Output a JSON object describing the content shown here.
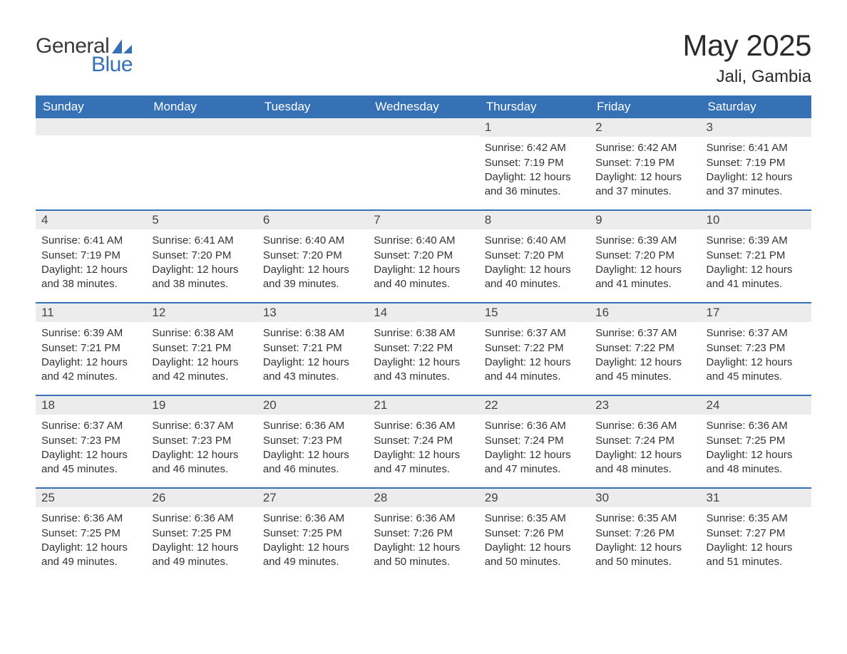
{
  "colors": {
    "header_bg": "#3671b6",
    "header_text": "#ffffff",
    "daynum_bg": "#ececec",
    "daynum_text": "#444444",
    "body_text": "#333333",
    "page_bg": "#ffffff",
    "week_border": "#3671b6",
    "logo_gray": "#3b3b3b",
    "logo_blue": "#3671b6"
  },
  "typography": {
    "title_fontsize": 42,
    "subtitle_fontsize": 24,
    "header_fontsize": 17,
    "daynum_fontsize": 17,
    "body_fontsize": 15,
    "font_family": "Arial"
  },
  "logo": {
    "line1": "General",
    "line2": "Blue"
  },
  "title": "May 2025",
  "subtitle": "Jali, Gambia",
  "day_headers": [
    "Sunday",
    "Monday",
    "Tuesday",
    "Wednesday",
    "Thursday",
    "Friday",
    "Saturday"
  ],
  "weeks": [
    [
      {
        "day": "",
        "sunrise": "",
        "sunset": "",
        "daylight": ""
      },
      {
        "day": "",
        "sunrise": "",
        "sunset": "",
        "daylight": ""
      },
      {
        "day": "",
        "sunrise": "",
        "sunset": "",
        "daylight": ""
      },
      {
        "day": "",
        "sunrise": "",
        "sunset": "",
        "daylight": ""
      },
      {
        "day": "1",
        "sunrise": "6:42 AM",
        "sunset": "7:19 PM",
        "daylight": "12 hours and 36 minutes."
      },
      {
        "day": "2",
        "sunrise": "6:42 AM",
        "sunset": "7:19 PM",
        "daylight": "12 hours and 37 minutes."
      },
      {
        "day": "3",
        "sunrise": "6:41 AM",
        "sunset": "7:19 PM",
        "daylight": "12 hours and 37 minutes."
      }
    ],
    [
      {
        "day": "4",
        "sunrise": "6:41 AM",
        "sunset": "7:19 PM",
        "daylight": "12 hours and 38 minutes."
      },
      {
        "day": "5",
        "sunrise": "6:41 AM",
        "sunset": "7:20 PM",
        "daylight": "12 hours and 38 minutes."
      },
      {
        "day": "6",
        "sunrise": "6:40 AM",
        "sunset": "7:20 PM",
        "daylight": "12 hours and 39 minutes."
      },
      {
        "day": "7",
        "sunrise": "6:40 AM",
        "sunset": "7:20 PM",
        "daylight": "12 hours and 40 minutes."
      },
      {
        "day": "8",
        "sunrise": "6:40 AM",
        "sunset": "7:20 PM",
        "daylight": "12 hours and 40 minutes."
      },
      {
        "day": "9",
        "sunrise": "6:39 AM",
        "sunset": "7:20 PM",
        "daylight": "12 hours and 41 minutes."
      },
      {
        "day": "10",
        "sunrise": "6:39 AM",
        "sunset": "7:21 PM",
        "daylight": "12 hours and 41 minutes."
      }
    ],
    [
      {
        "day": "11",
        "sunrise": "6:39 AM",
        "sunset": "7:21 PM",
        "daylight": "12 hours and 42 minutes."
      },
      {
        "day": "12",
        "sunrise": "6:38 AM",
        "sunset": "7:21 PM",
        "daylight": "12 hours and 42 minutes."
      },
      {
        "day": "13",
        "sunrise": "6:38 AM",
        "sunset": "7:21 PM",
        "daylight": "12 hours and 43 minutes."
      },
      {
        "day": "14",
        "sunrise": "6:38 AM",
        "sunset": "7:22 PM",
        "daylight": "12 hours and 43 minutes."
      },
      {
        "day": "15",
        "sunrise": "6:37 AM",
        "sunset": "7:22 PM",
        "daylight": "12 hours and 44 minutes."
      },
      {
        "day": "16",
        "sunrise": "6:37 AM",
        "sunset": "7:22 PM",
        "daylight": "12 hours and 45 minutes."
      },
      {
        "day": "17",
        "sunrise": "6:37 AM",
        "sunset": "7:23 PM",
        "daylight": "12 hours and 45 minutes."
      }
    ],
    [
      {
        "day": "18",
        "sunrise": "6:37 AM",
        "sunset": "7:23 PM",
        "daylight": "12 hours and 45 minutes."
      },
      {
        "day": "19",
        "sunrise": "6:37 AM",
        "sunset": "7:23 PM",
        "daylight": "12 hours and 46 minutes."
      },
      {
        "day": "20",
        "sunrise": "6:36 AM",
        "sunset": "7:23 PM",
        "daylight": "12 hours and 46 minutes."
      },
      {
        "day": "21",
        "sunrise": "6:36 AM",
        "sunset": "7:24 PM",
        "daylight": "12 hours and 47 minutes."
      },
      {
        "day": "22",
        "sunrise": "6:36 AM",
        "sunset": "7:24 PM",
        "daylight": "12 hours and 47 minutes."
      },
      {
        "day": "23",
        "sunrise": "6:36 AM",
        "sunset": "7:24 PM",
        "daylight": "12 hours and 48 minutes."
      },
      {
        "day": "24",
        "sunrise": "6:36 AM",
        "sunset": "7:25 PM",
        "daylight": "12 hours and 48 minutes."
      }
    ],
    [
      {
        "day": "25",
        "sunrise": "6:36 AM",
        "sunset": "7:25 PM",
        "daylight": "12 hours and 49 minutes."
      },
      {
        "day": "26",
        "sunrise": "6:36 AM",
        "sunset": "7:25 PM",
        "daylight": "12 hours and 49 minutes."
      },
      {
        "day": "27",
        "sunrise": "6:36 AM",
        "sunset": "7:25 PM",
        "daylight": "12 hours and 49 minutes."
      },
      {
        "day": "28",
        "sunrise": "6:36 AM",
        "sunset": "7:26 PM",
        "daylight": "12 hours and 50 minutes."
      },
      {
        "day": "29",
        "sunrise": "6:35 AM",
        "sunset": "7:26 PM",
        "daylight": "12 hours and 50 minutes."
      },
      {
        "day": "30",
        "sunrise": "6:35 AM",
        "sunset": "7:26 PM",
        "daylight": "12 hours and 50 minutes."
      },
      {
        "day": "31",
        "sunrise": "6:35 AM",
        "sunset": "7:27 PM",
        "daylight": "12 hours and 51 minutes."
      }
    ]
  ],
  "labels": {
    "sunrise_prefix": "Sunrise: ",
    "sunset_prefix": "Sunset: ",
    "daylight_prefix": "Daylight: "
  }
}
